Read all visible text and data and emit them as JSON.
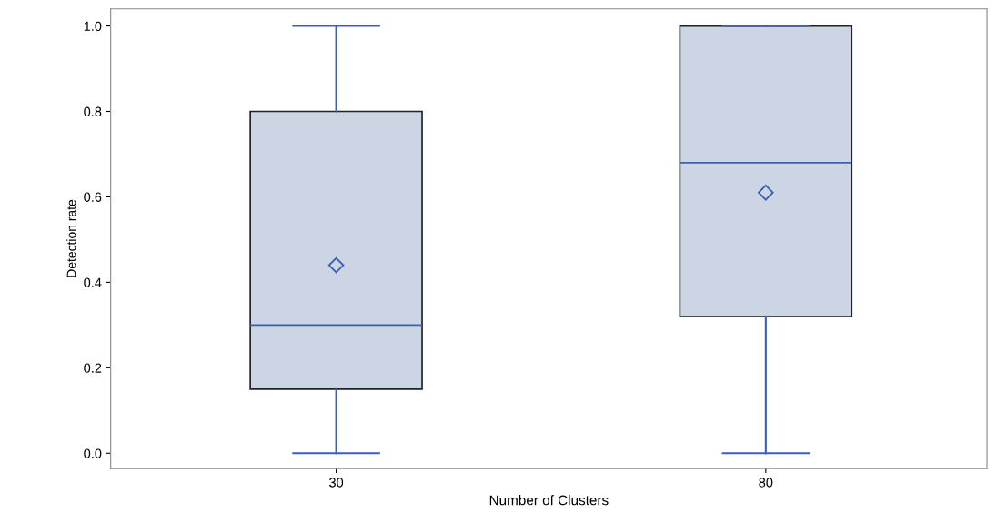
{
  "chart_data": {
    "type": "box",
    "xlabel": "Number of Clusters",
    "ylabel": "Detection rate",
    "categories": [
      "30",
      "80"
    ],
    "boxes": [
      {
        "low": 0.0,
        "q1": 0.15,
        "median": 0.3,
        "q3": 0.8,
        "high": 1.0,
        "mean": 0.44
      },
      {
        "low": 0.0,
        "q1": 0.32,
        "median": 0.68,
        "q3": 1.0,
        "high": 1.0,
        "mean": 0.61
      }
    ],
    "color": "#cbd5e3",
    "ylim": [
      -0.036,
      1.04
    ],
    "yticks": [
      {
        "value": 0,
        "label": "0.0"
      },
      {
        "value": 0.2,
        "label": "0.2"
      },
      {
        "value": 0.4,
        "label": "0.4"
      },
      {
        "value": 0.6,
        "label": "0.6"
      },
      {
        "value": 0.8,
        "label": "0.8"
      },
      {
        "value": 1,
        "label": "1.0"
      }
    ],
    "grid": false,
    "legend": false,
    "marker": "diamond"
  }
}
